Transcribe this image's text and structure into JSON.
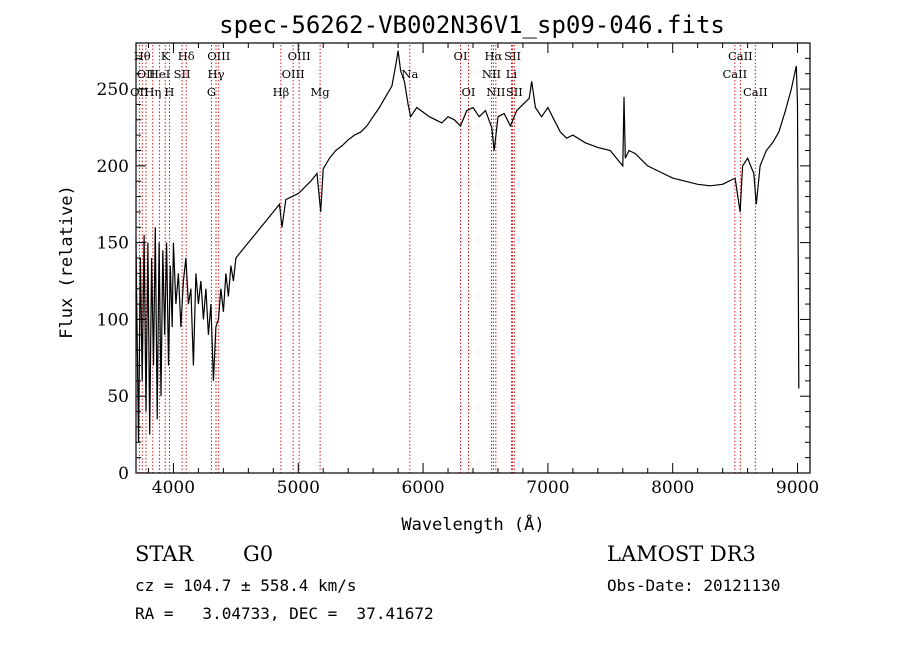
{
  "chart_data": {
    "type": "line",
    "title": "spec-56262-VB002N36V1_sp09-046.fits",
    "xlabel": "Wavelength (Å)",
    "ylabel": "Flux (relative)",
    "xlim": [
      3700,
      9100
    ],
    "ylim": [
      0,
      280
    ],
    "xticks": [
      4000,
      5000,
      6000,
      7000,
      8000,
      9000
    ],
    "yticks": [
      0,
      50,
      100,
      150,
      200,
      250
    ],
    "series": [
      {
        "name": "flux",
        "points": [
          [
            3700,
            150
          ],
          [
            3720,
            20
          ],
          [
            3735,
            140
          ],
          [
            3750,
            60
          ],
          [
            3765,
            155
          ],
          [
            3780,
            40
          ],
          [
            3795,
            150
          ],
          [
            3810,
            25
          ],
          [
            3825,
            140
          ],
          [
            3840,
            70
          ],
          [
            3855,
            160
          ],
          [
            3870,
            35
          ],
          [
            3885,
            150
          ],
          [
            3900,
            50
          ],
          [
            3915,
            145
          ],
          [
            3930,
            90
          ],
          [
            3945,
            150
          ],
          [
            3960,
            70
          ],
          [
            3975,
            135
          ],
          [
            3990,
            95
          ],
          [
            4000,
            150
          ],
          [
            4020,
            110
          ],
          [
            4040,
            130
          ],
          [
            4060,
            95
          ],
          [
            4080,
            125
          ],
          [
            4100,
            140
          ],
          [
            4120,
            110
          ],
          [
            4140,
            120
          ],
          [
            4160,
            70
          ],
          [
            4180,
            130
          ],
          [
            4200,
            110
          ],
          [
            4220,
            125
          ],
          [
            4240,
            100
          ],
          [
            4260,
            120
          ],
          [
            4280,
            90
          ],
          [
            4300,
            110
          ],
          [
            4320,
            60
          ],
          [
            4340,
            95
          ],
          [
            4360,
            100
          ],
          [
            4380,
            120
          ],
          [
            4400,
            105
          ],
          [
            4420,
            130
          ],
          [
            4440,
            115
          ],
          [
            4460,
            135
          ],
          [
            4480,
            125
          ],
          [
            4500,
            140
          ],
          [
            4550,
            145
          ],
          [
            4600,
            150
          ],
          [
            4650,
            155
          ],
          [
            4700,
            160
          ],
          [
            4750,
            165
          ],
          [
            4800,
            170
          ],
          [
            4850,
            175
          ],
          [
            4870,
            160
          ],
          [
            4900,
            178
          ],
          [
            4950,
            180
          ],
          [
            5000,
            182
          ],
          [
            5050,
            186
          ],
          [
            5100,
            190
          ],
          [
            5150,
            195
          ],
          [
            5180,
            170
          ],
          [
            5200,
            198
          ],
          [
            5250,
            205
          ],
          [
            5300,
            210
          ],
          [
            5350,
            213
          ],
          [
            5400,
            217
          ],
          [
            5450,
            220
          ],
          [
            5500,
            222
          ],
          [
            5550,
            226
          ],
          [
            5600,
            232
          ],
          [
            5650,
            238
          ],
          [
            5700,
            245
          ],
          [
            5750,
            252
          ],
          [
            5780,
            265
          ],
          [
            5800,
            275
          ],
          [
            5820,
            262
          ],
          [
            5850,
            255
          ],
          [
            5880,
            240
          ],
          [
            5900,
            232
          ],
          [
            5950,
            238
          ],
          [
            6000,
            235
          ],
          [
            6050,
            232
          ],
          [
            6100,
            230
          ],
          [
            6150,
            228
          ],
          [
            6200,
            232
          ],
          [
            6250,
            230
          ],
          [
            6300,
            226
          ],
          [
            6350,
            236
          ],
          [
            6400,
            238
          ],
          [
            6450,
            232
          ],
          [
            6500,
            236
          ],
          [
            6550,
            225
          ],
          [
            6570,
            210
          ],
          [
            6600,
            232
          ],
          [
            6650,
            234
          ],
          [
            6700,
            226
          ],
          [
            6750,
            236
          ],
          [
            6800,
            240
          ],
          [
            6850,
            244
          ],
          [
            6870,
            255
          ],
          [
            6900,
            238
          ],
          [
            6950,
            232
          ],
          [
            7000,
            238
          ],
          [
            7050,
            230
          ],
          [
            7100,
            222
          ],
          [
            7150,
            218
          ],
          [
            7200,
            220
          ],
          [
            7300,
            215
          ],
          [
            7400,
            212
          ],
          [
            7500,
            210
          ],
          [
            7550,
            205
          ],
          [
            7600,
            200
          ],
          [
            7610,
            245
          ],
          [
            7620,
            205
          ],
          [
            7650,
            210
          ],
          [
            7700,
            208
          ],
          [
            7800,
            200
          ],
          [
            7900,
            196
          ],
          [
            8000,
            192
          ],
          [
            8100,
            190
          ],
          [
            8200,
            188
          ],
          [
            8300,
            187
          ],
          [
            8400,
            188
          ],
          [
            8500,
            192
          ],
          [
            8540,
            170
          ],
          [
            8560,
            200
          ],
          [
            8600,
            205
          ],
          [
            8650,
            195
          ],
          [
            8670,
            175
          ],
          [
            8700,
            200
          ],
          [
            8750,
            210
          ],
          [
            8800,
            215
          ],
          [
            8850,
            222
          ],
          [
            8900,
            235
          ],
          [
            8950,
            250
          ],
          [
            8990,
            265
          ],
          [
            9000,
            240
          ],
          [
            9010,
            55
          ]
        ]
      }
    ],
    "emission_lines": [
      {
        "label": "OII",
        "wavelength": 3727,
        "row": 2
      },
      {
        "label": "Hθ",
        "wavelength": 3750,
        "row": 0
      },
      {
        "label": "OII",
        "wavelength": 3780,
        "row": 1
      },
      {
        "label": "Hη",
        "wavelength": 3835,
        "row": 2
      },
      {
        "label": "HeI",
        "wavelength": 3889,
        "row": 1
      },
      {
        "label": "K",
        "wavelength": 3934,
        "row": 0
      },
      {
        "label": "H",
        "wavelength": 3968,
        "row": 2
      },
      {
        "label": "SII",
        "wavelength": 4069,
        "row": 1
      },
      {
        "label": "Hδ",
        "wavelength": 4102,
        "row": 0
      },
      {
        "label": "G",
        "wavelength": 4305,
        "row": 2
      },
      {
        "label": "Hγ",
        "wavelength": 4341,
        "row": 1
      },
      {
        "label": "OIII",
        "wavelength": 4363,
        "row": 0
      },
      {
        "label": "Hβ",
        "wavelength": 4861,
        "row": 2
      },
      {
        "label": "OIII",
        "wavelength": 4959,
        "row": 1
      },
      {
        "label": "OIII",
        "wavelength": 5007,
        "row": 0
      },
      {
        "label": "Mg",
        "wavelength": 5175,
        "row": 2
      },
      {
        "label": "Na",
        "wavelength": 5894,
        "row": 1
      },
      {
        "label": "OI",
        "wavelength": 6300,
        "row": 0
      },
      {
        "label": "OI",
        "wavelength": 6364,
        "row": 2
      },
      {
        "label": "NII",
        "wavelength": 6548,
        "row": 1
      },
      {
        "label": "Hα",
        "wavelength": 6563,
        "row": 0
      },
      {
        "label": "NII",
        "wavelength": 6583,
        "row": 2
      },
      {
        "label": "SII",
        "wavelength": 6717,
        "row": 0
      },
      {
        "label": "Li",
        "wavelength": 6708,
        "row": 1
      },
      {
        "label": "SII",
        "wavelength": 6731,
        "row": 2
      },
      {
        "label": "CaII",
        "wavelength": 8498,
        "row": 1
      },
      {
        "label": "CaII",
        "wavelength": 8542,
        "row": 0
      },
      {
        "label": "CaII",
        "wavelength": 8662,
        "row": 2
      }
    ]
  },
  "info": {
    "class_label": "STAR",
    "subclass": "G0",
    "survey": "LAMOST DR3",
    "cz": "cz = 104.7 ± 558.4 km/s",
    "obs_date": "Obs-Date: 20121130",
    "coords": "RA =   3.04733, DEC =  37.41672"
  },
  "colors": {
    "line": "#000000",
    "marker": "#cc0000",
    "background": "#ffffff"
  }
}
